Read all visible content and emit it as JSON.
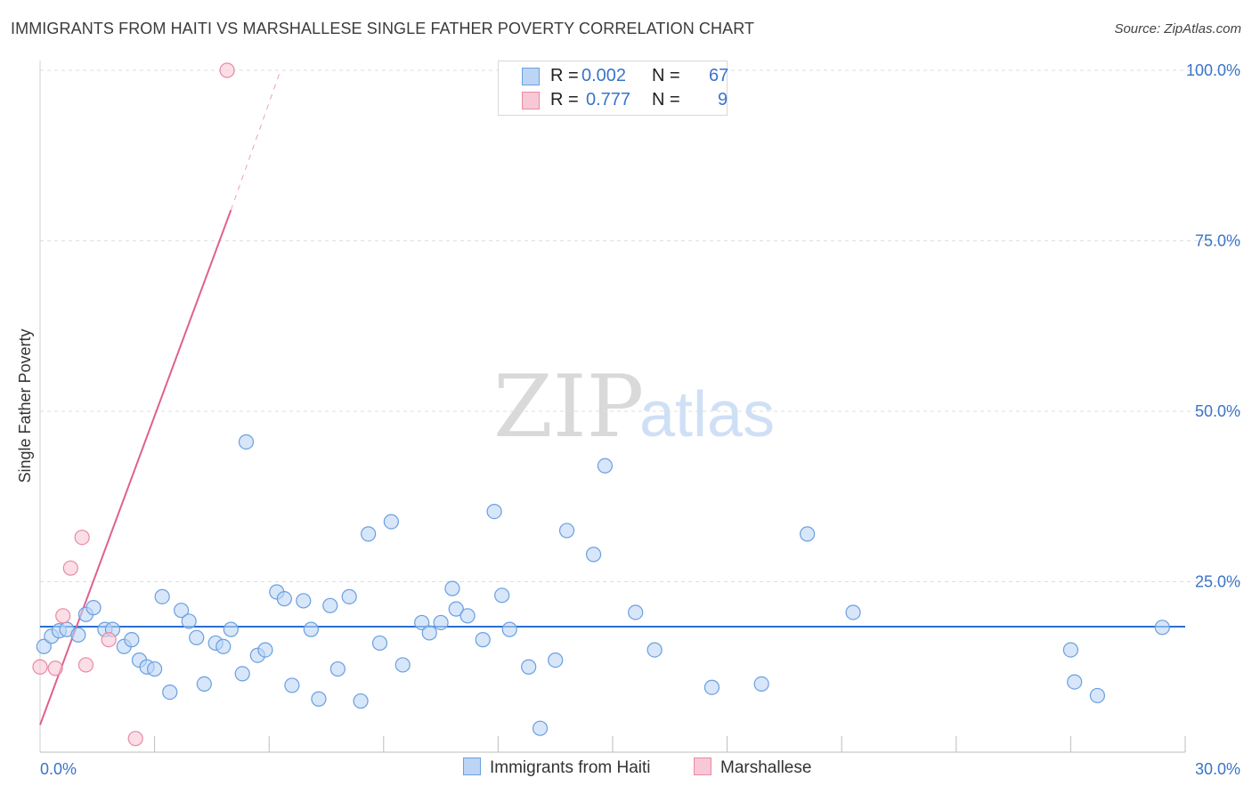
{
  "title": "IMMIGRANTS FROM HAITI VS MARSHALLESE SINGLE FATHER POVERTY CORRELATION CHART",
  "source": "Source: ZipAtlas.com",
  "watermark": {
    "zip": "ZIP",
    "atlas": "atlas"
  },
  "colors": {
    "blue": "#6a9fe0",
    "blue_fill": "#bcd5f5",
    "blue_line": "#2a6fd0",
    "pink": "#e98aa6",
    "pink_fill": "#f8c8d6",
    "pink_line": "#e0608f",
    "axis_label": "#3a74c8",
    "grid": "#dedede"
  },
  "stats_legend": {
    "rows": [
      {
        "r_label": "R =",
        "r_value": "0.002",
        "n_label": "N =",
        "n_value": "67"
      },
      {
        "r_label": "R =",
        "r_value": "0.777",
        "n_label": "N =",
        "n_value": "9"
      }
    ]
  },
  "bottom_legend": {
    "series1": "Immigrants from Haiti",
    "series2": "Marshallese"
  },
  "chart_data": {
    "type": "scatter",
    "xlabel": "",
    "ylabel": "Single Father Poverty",
    "xlim": [
      0,
      30
    ],
    "ylim": [
      0,
      100
    ],
    "x_tick_labels": [
      "0.0%",
      "30.0%"
    ],
    "y_tick_labels": [
      "25.0%",
      "50.0%",
      "75.0%",
      "100.0%"
    ],
    "y_ticks": [
      25,
      50,
      75,
      100
    ],
    "grid": true,
    "series": [
      {
        "name": "Immigrants from Haiti",
        "R": 0.002,
        "N": 67,
        "trend": {
          "x": [
            0,
            30
          ],
          "y": [
            18.4,
            18.4
          ],
          "style": "solid"
        },
        "points": [
          [
            0.1,
            15.5
          ],
          [
            0.3,
            17.0
          ],
          [
            0.5,
            17.8
          ],
          [
            0.7,
            18.0
          ],
          [
            1.0,
            17.2
          ],
          [
            1.2,
            20.2
          ],
          [
            1.4,
            21.2
          ],
          [
            1.7,
            18.0
          ],
          [
            1.9,
            18.0
          ],
          [
            2.2,
            15.5
          ],
          [
            2.4,
            16.5
          ],
          [
            2.6,
            13.5
          ],
          [
            2.8,
            12.5
          ],
          [
            3.0,
            12.2
          ],
          [
            3.2,
            22.8
          ],
          [
            3.4,
            8.8
          ],
          [
            3.7,
            20.8
          ],
          [
            3.9,
            19.2
          ],
          [
            4.1,
            16.8
          ],
          [
            4.3,
            10.0
          ],
          [
            4.6,
            16.0
          ],
          [
            4.8,
            15.5
          ],
          [
            5.0,
            18.0
          ],
          [
            5.3,
            11.5
          ],
          [
            5.4,
            45.5
          ],
          [
            5.7,
            14.2
          ],
          [
            5.9,
            15.0
          ],
          [
            6.2,
            23.5
          ],
          [
            6.4,
            22.5
          ],
          [
            6.6,
            9.8
          ],
          [
            6.9,
            22.2
          ],
          [
            7.1,
            18.0
          ],
          [
            7.3,
            7.8
          ],
          [
            7.6,
            21.5
          ],
          [
            7.8,
            12.2
          ],
          [
            8.1,
            22.8
          ],
          [
            8.4,
            7.5
          ],
          [
            8.6,
            32.0
          ],
          [
            8.9,
            16.0
          ],
          [
            9.2,
            33.8
          ],
          [
            9.5,
            12.8
          ],
          [
            10.0,
            19.0
          ],
          [
            10.2,
            17.5
          ],
          [
            10.5,
            19.0
          ],
          [
            10.8,
            24.0
          ],
          [
            10.9,
            21.0
          ],
          [
            11.2,
            20.0
          ],
          [
            11.6,
            16.5
          ],
          [
            11.9,
            35.3
          ],
          [
            12.1,
            23.0
          ],
          [
            12.3,
            18.0
          ],
          [
            12.8,
            12.5
          ],
          [
            13.1,
            3.5
          ],
          [
            13.5,
            13.5
          ],
          [
            13.8,
            32.5
          ],
          [
            14.5,
            29.0
          ],
          [
            14.8,
            42.0
          ],
          [
            15.6,
            20.5
          ],
          [
            16.1,
            15.0
          ],
          [
            17.6,
            9.5
          ],
          [
            18.9,
            10.0
          ],
          [
            20.1,
            32.0
          ],
          [
            21.3,
            20.5
          ],
          [
            27.0,
            15.0
          ],
          [
            27.1,
            10.3
          ],
          [
            27.7,
            8.3
          ],
          [
            29.4,
            18.3
          ]
        ]
      },
      {
        "name": "Marshallese",
        "R": 0.777,
        "N": 9,
        "trend": {
          "x": [
            0,
            5.0
          ],
          "y": [
            4.0,
            79.5
          ],
          "dashed_to": [
            6.3,
            100.0
          ]
        },
        "points": [
          [
            0.0,
            12.5
          ],
          [
            0.4,
            12.3
          ],
          [
            0.6,
            20.0
          ],
          [
            0.8,
            27.0
          ],
          [
            1.1,
            31.5
          ],
          [
            1.2,
            12.8
          ],
          [
            1.8,
            16.5
          ],
          [
            2.5,
            2.0
          ],
          [
            4.9,
            100.0
          ]
        ]
      }
    ]
  }
}
